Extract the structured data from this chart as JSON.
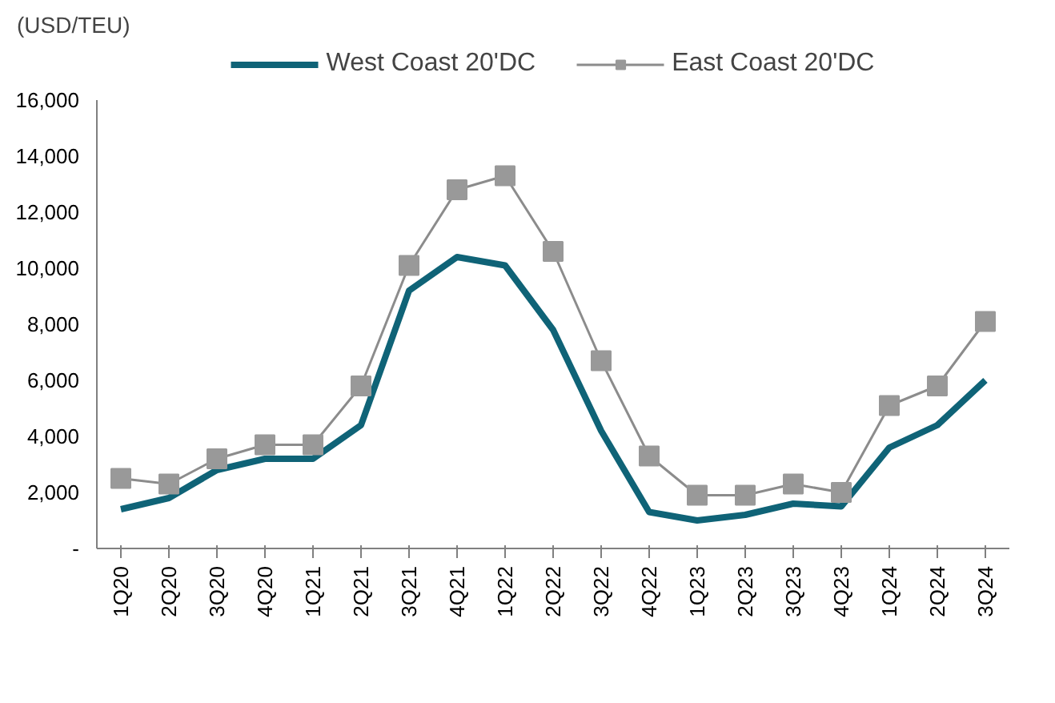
{
  "chart_data": {
    "type": "line",
    "ylabel": "(USD/TEU)",
    "categories": [
      "1Q20",
      "2Q20",
      "3Q20",
      "4Q20",
      "1Q21",
      "2Q21",
      "3Q21",
      "4Q21",
      "1Q22",
      "2Q22",
      "3Q22",
      "4Q22",
      "1Q23",
      "2Q23",
      "3Q23",
      "4Q23",
      "1Q24",
      "2Q24",
      "3Q24"
    ],
    "series": [
      {
        "name": "West Coast 20'DC",
        "color": "#0f6377",
        "marker": "none",
        "values": [
          1400,
          1800,
          2800,
          3200,
          3200,
          4400,
          9200,
          10400,
          10100,
          7800,
          4200,
          1300,
          1000,
          1200,
          1600,
          1500,
          3600,
          4400,
          6000
        ]
      },
      {
        "name": "East Coast 20'DC",
        "color": "#8c8c8c",
        "marker": "square",
        "values": [
          2500,
          2300,
          3200,
          3700,
          3700,
          5800,
          10100,
          12800,
          13300,
          10600,
          6700,
          3300,
          1900,
          1900,
          2300,
          2000,
          5100,
          5800,
          8100
        ]
      }
    ],
    "ylim": [
      0,
      16000
    ],
    "yticks": [
      {
        "value": 0,
        "label": "-"
      },
      {
        "value": 2000,
        "label": "2,000"
      },
      {
        "value": 4000,
        "label": "4,000"
      },
      {
        "value": 6000,
        "label": "6,000"
      },
      {
        "value": 8000,
        "label": "8,000"
      },
      {
        "value": 10000,
        "label": "10,000"
      },
      {
        "value": 12000,
        "label": "12,000"
      },
      {
        "value": 14000,
        "label": "14,000"
      },
      {
        "value": 16000,
        "label": "16,000"
      }
    ],
    "grid": false,
    "legend": "top"
  }
}
